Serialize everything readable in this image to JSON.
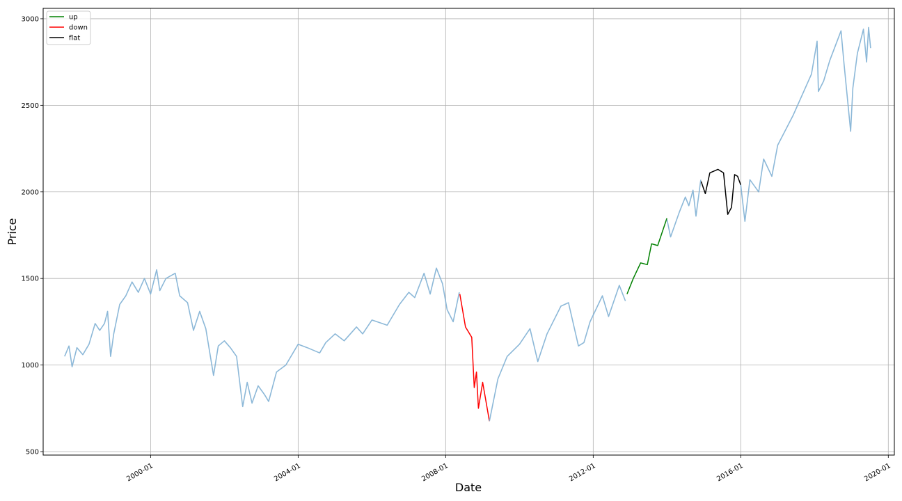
{
  "chart_data": {
    "type": "line",
    "title": "",
    "xlabel": "Date",
    "ylabel": "Price",
    "grid": true,
    "legend_position": "top-left",
    "xlim": [
      "1997-02-01",
      "2020-03-01"
    ],
    "ylim": [
      480,
      3060
    ],
    "x_ticks": [
      "2000-01",
      "2004-01",
      "2008-01",
      "2012-01",
      "2016-01",
      "2020-01"
    ],
    "y_ticks": [
      500,
      1000,
      1500,
      2000,
      2500,
      3000
    ],
    "colors": {
      "base": "#7fb0d4",
      "up": "#008000",
      "down": "#ff0000",
      "flat": "#000000",
      "grid": "#b0b0b0"
    },
    "series": [
      {
        "name": "",
        "color": "#7fb0d4",
        "points": [
          [
            "1997-09-01",
            1050
          ],
          [
            "1997-10-15",
            1110
          ],
          [
            "1997-11-15",
            990
          ],
          [
            "1998-01-01",
            1100
          ],
          [
            "1998-03-01",
            1060
          ],
          [
            "1998-05-01",
            1120
          ],
          [
            "1998-07-01",
            1240
          ],
          [
            "1998-08-15",
            1200
          ],
          [
            "1998-10-01",
            1240
          ],
          [
            "1998-11-01",
            1310
          ],
          [
            "1998-12-01",
            1050
          ],
          [
            "1999-01-01",
            1180
          ],
          [
            "1999-03-01",
            1350
          ],
          [
            "1999-05-01",
            1400
          ],
          [
            "1999-07-01",
            1480
          ],
          [
            "1999-09-01",
            1420
          ],
          [
            "1999-11-01",
            1500
          ],
          [
            "2000-01-01",
            1410
          ],
          [
            "2000-03-01",
            1550
          ],
          [
            "2000-04-01",
            1430
          ],
          [
            "2000-06-01",
            1500
          ],
          [
            "2000-09-01",
            1530
          ],
          [
            "2000-10-15",
            1400
          ],
          [
            "2001-01-01",
            1360
          ],
          [
            "2001-03-01",
            1200
          ],
          [
            "2001-05-01",
            1310
          ],
          [
            "2001-07-01",
            1210
          ],
          [
            "2001-09-15",
            940
          ],
          [
            "2001-11-01",
            1110
          ],
          [
            "2002-01-01",
            1140
          ],
          [
            "2002-03-01",
            1100
          ],
          [
            "2002-05-01",
            1050
          ],
          [
            "2002-07-01",
            760
          ],
          [
            "2002-08-15",
            900
          ],
          [
            "2002-10-01",
            780
          ],
          [
            "2002-12-01",
            880
          ],
          [
            "2003-02-01",
            830
          ],
          [
            "2003-03-15",
            790
          ],
          [
            "2003-06-01",
            960
          ],
          [
            "2003-09-01",
            1000
          ],
          [
            "2004-01-01",
            1120
          ],
          [
            "2004-04-01",
            1100
          ],
          [
            "2004-08-01",
            1070
          ],
          [
            "2004-10-01",
            1130
          ],
          [
            "2005-01-01",
            1180
          ],
          [
            "2005-04-01",
            1140
          ],
          [
            "2005-08-01",
            1220
          ],
          [
            "2005-10-01",
            1180
          ],
          [
            "2006-01-01",
            1260
          ],
          [
            "2006-06-01",
            1230
          ],
          [
            "2006-10-01",
            1350
          ],
          [
            "2007-01-01",
            1420
          ],
          [
            "2007-03-01",
            1390
          ],
          [
            "2007-06-01",
            1530
          ],
          [
            "2007-08-01",
            1410
          ],
          [
            "2007-10-01",
            1560
          ],
          [
            "2007-12-01",
            1470
          ],
          [
            "2008-01-15",
            1320
          ],
          [
            "2008-03-15",
            1250
          ],
          [
            "2008-05-15",
            1420
          ]
        ]
      },
      {
        "name": "down",
        "color": "#ff0000",
        "points": [
          [
            "2008-05-20",
            1410
          ],
          [
            "2008-07-15",
            1220
          ],
          [
            "2008-09-15",
            1160
          ],
          [
            "2008-10-10",
            870
          ],
          [
            "2008-11-01",
            960
          ],
          [
            "2008-11-20",
            750
          ],
          [
            "2009-01-01",
            900
          ],
          [
            "2009-03-09",
            676
          ]
        ]
      },
      {
        "name": "",
        "color": "#7fb0d4",
        "points": [
          [
            "2009-03-09",
            676
          ],
          [
            "2009-06-01",
            920
          ],
          [
            "2009-09-01",
            1050
          ],
          [
            "2010-01-01",
            1120
          ],
          [
            "2010-04-15",
            1210
          ],
          [
            "2010-07-01",
            1020
          ],
          [
            "2010-10-01",
            1180
          ],
          [
            "2011-02-15",
            1340
          ],
          [
            "2011-05-01",
            1360
          ],
          [
            "2011-08-08",
            1110
          ],
          [
            "2011-10-01",
            1130
          ],
          [
            "2011-12-01",
            1250
          ],
          [
            "2012-04-01",
            1400
          ],
          [
            "2012-06-01",
            1280
          ],
          [
            "2012-09-15",
            1460
          ],
          [
            "2012-11-15",
            1370
          ]
        ]
      },
      {
        "name": "up",
        "color": "#008000",
        "points": [
          [
            "2012-12-01",
            1410
          ],
          [
            "2013-02-01",
            1500
          ],
          [
            "2013-04-15",
            1590
          ],
          [
            "2013-06-20",
            1580
          ],
          [
            "2013-08-01",
            1700
          ],
          [
            "2013-10-01",
            1690
          ],
          [
            "2013-12-31",
            1848
          ]
        ]
      },
      {
        "name": "",
        "color": "#7fb0d4",
        "points": [
          [
            "2014-01-01",
            1840
          ],
          [
            "2014-02-05",
            1740
          ],
          [
            "2014-05-01",
            1880
          ],
          [
            "2014-07-01",
            1970
          ],
          [
            "2014-08-05",
            1920
          ],
          [
            "2014-09-15",
            2010
          ],
          [
            "2014-10-15",
            1860
          ],
          [
            "2014-12-01",
            2070
          ]
        ]
      },
      {
        "name": "flat",
        "color": "#000000",
        "points": [
          [
            "2014-12-05",
            2060
          ],
          [
            "2015-01-15",
            1990
          ],
          [
            "2015-03-01",
            2110
          ],
          [
            "2015-05-20",
            2130
          ],
          [
            "2015-07-15",
            2110
          ],
          [
            "2015-08-25",
            1870
          ],
          [
            "2015-10-01",
            1910
          ],
          [
            "2015-11-01",
            2100
          ],
          [
            "2015-12-01",
            2090
          ],
          [
            "2016-01-01",
            2040
          ]
        ]
      },
      {
        "name": "",
        "color": "#7fb0d4",
        "points": [
          [
            "2016-01-01",
            2040
          ],
          [
            "2016-02-11",
            1830
          ],
          [
            "2016-04-01",
            2070
          ],
          [
            "2016-06-27",
            2000
          ],
          [
            "2016-08-15",
            2190
          ],
          [
            "2016-11-04",
            2090
          ],
          [
            "2017-01-01",
            2270
          ],
          [
            "2017-06-01",
            2440
          ],
          [
            "2017-12-01",
            2680
          ],
          [
            "2018-01-26",
            2870
          ],
          [
            "2018-02-08",
            2580
          ],
          [
            "2018-04-01",
            2640
          ],
          [
            "2018-06-01",
            2760
          ],
          [
            "2018-09-20",
            2930
          ],
          [
            "2018-10-20",
            2740
          ],
          [
            "2018-12-24",
            2350
          ],
          [
            "2019-01-15",
            2600
          ],
          [
            "2019-03-01",
            2800
          ],
          [
            "2019-04-30",
            2940
          ],
          [
            "2019-05-31",
            2750
          ],
          [
            "2019-06-20",
            2950
          ],
          [
            "2019-07-10",
            2830
          ]
        ]
      }
    ],
    "legend": [
      {
        "label": "up",
        "color": "#008000"
      },
      {
        "label": "down",
        "color": "#ff0000"
      },
      {
        "label": "flat",
        "color": "#000000"
      }
    ]
  }
}
